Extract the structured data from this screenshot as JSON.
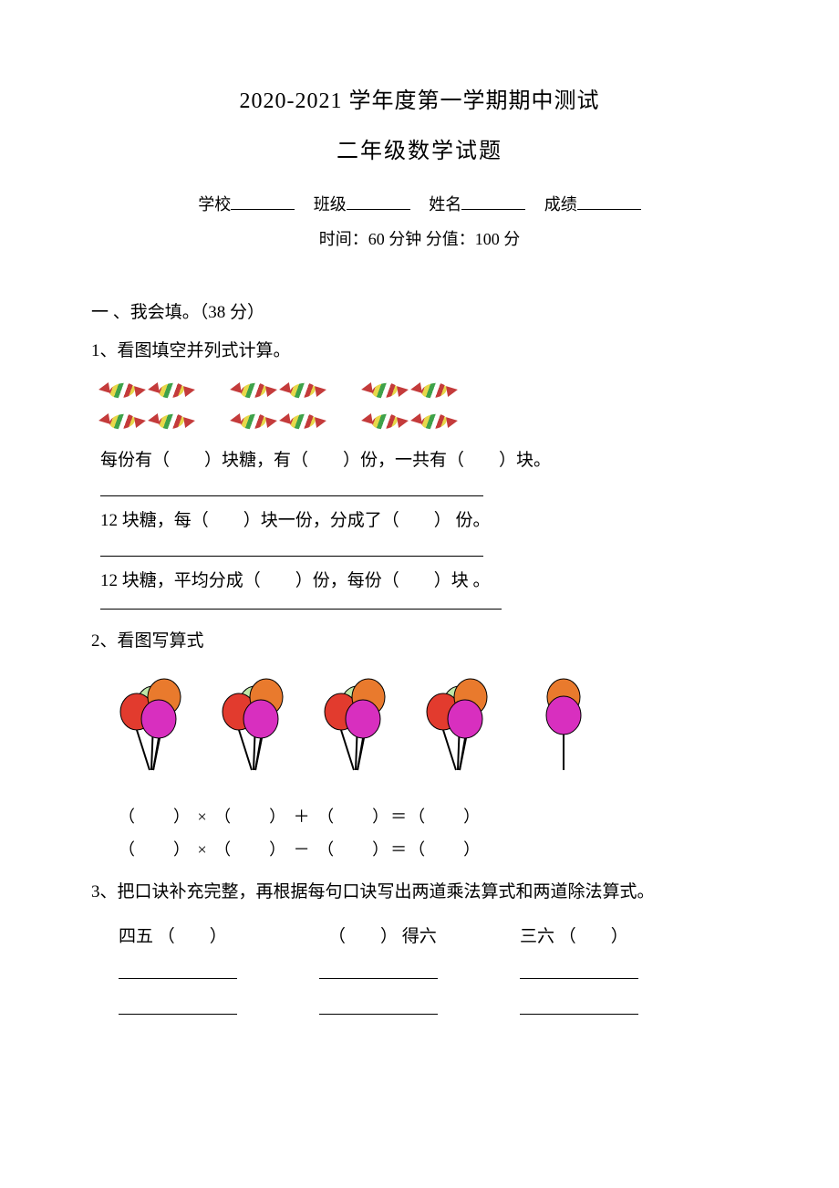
{
  "header": {
    "title_line1": "2020-2021 学年度第一学期期中测试",
    "title_line2": "二年级数学试题",
    "labels": {
      "school": "学校",
      "class": "班级",
      "name": "姓名",
      "score": "成绩"
    },
    "time_line": "时间：60 分钟  分值：100 分"
  },
  "section1": {
    "heading": "一 、我会填。（38 分）",
    "q1": {
      "prompt": "1、看图填空并列式计算。",
      "candies": {
        "rows": 2,
        "groups": 3,
        "per_group_cols": 2,
        "candy_palette": [
          "#c43b3b",
          "#e7d84a",
          "#3ea24a",
          "#ffffff"
        ]
      },
      "line1": "每份有（　　）块糖，有（　　）份，一共有（　　）块。",
      "line2": "12 块糖，每（　　）块一份，分成了（　　） 份。",
      "line3": "12 块糖，平均分成（　　）份，每份（　　）块 。"
    },
    "q2": {
      "prompt": "2、看图写算式",
      "balloons": {
        "bunch_count": 4,
        "per_bunch": 3,
        "extra": 1,
        "colors": {
          "left": "#e23b2e",
          "top": "#e97a2d",
          "right": "#d82fbf",
          "back": "#bfe7a7",
          "stick": "#000000"
        }
      },
      "eq1": "（　　） × （　　） ＋ （　　）＝（　　）",
      "eq2": "（　　） × （　　） － （　　）＝（　　）"
    },
    "q3": {
      "prompt": "3、把口诀补充完整，再根据每句口诀写出两道乘法算式和两道除法算式。",
      "items": [
        "四五 （　　）",
        "（　　） 得六",
        "三六 （　　）"
      ]
    }
  }
}
